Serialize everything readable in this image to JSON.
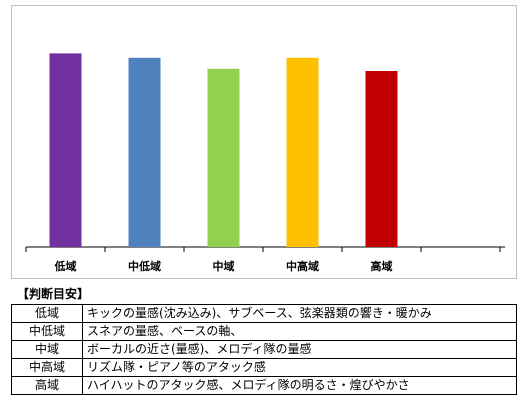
{
  "chart_data": {
    "type": "bar",
    "categories": [
      "低域",
      "中低域",
      "中域",
      "中高域",
      "高域"
    ],
    "values": [
      88,
      86,
      81,
      86,
      80
    ],
    "ylim": [
      0,
      100
    ],
    "grid": false,
    "colors": [
      "#7030a0",
      "#4f81bd",
      "#92d050",
      "#ffc000",
      "#c00000"
    ]
  },
  "guide": {
    "title": "【判断目安】",
    "rows": [
      {
        "band": "低域",
        "description": "キックの量感(沈み込み)、サブベース、弦楽器類の響き・暖かみ"
      },
      {
        "band": "中低域",
        "description": "スネアの量感、ベースの軸、"
      },
      {
        "band": "中域",
        "description": "ボーカルの近さ(量感)、メロディ隊の量感"
      },
      {
        "band": "中高域",
        "description": "リズム隊・ピアノ等のアタック感"
      },
      {
        "band": "高域",
        "description": "ハイハットのアタック感、メロディ隊の明るさ・煌びやかさ"
      }
    ]
  }
}
